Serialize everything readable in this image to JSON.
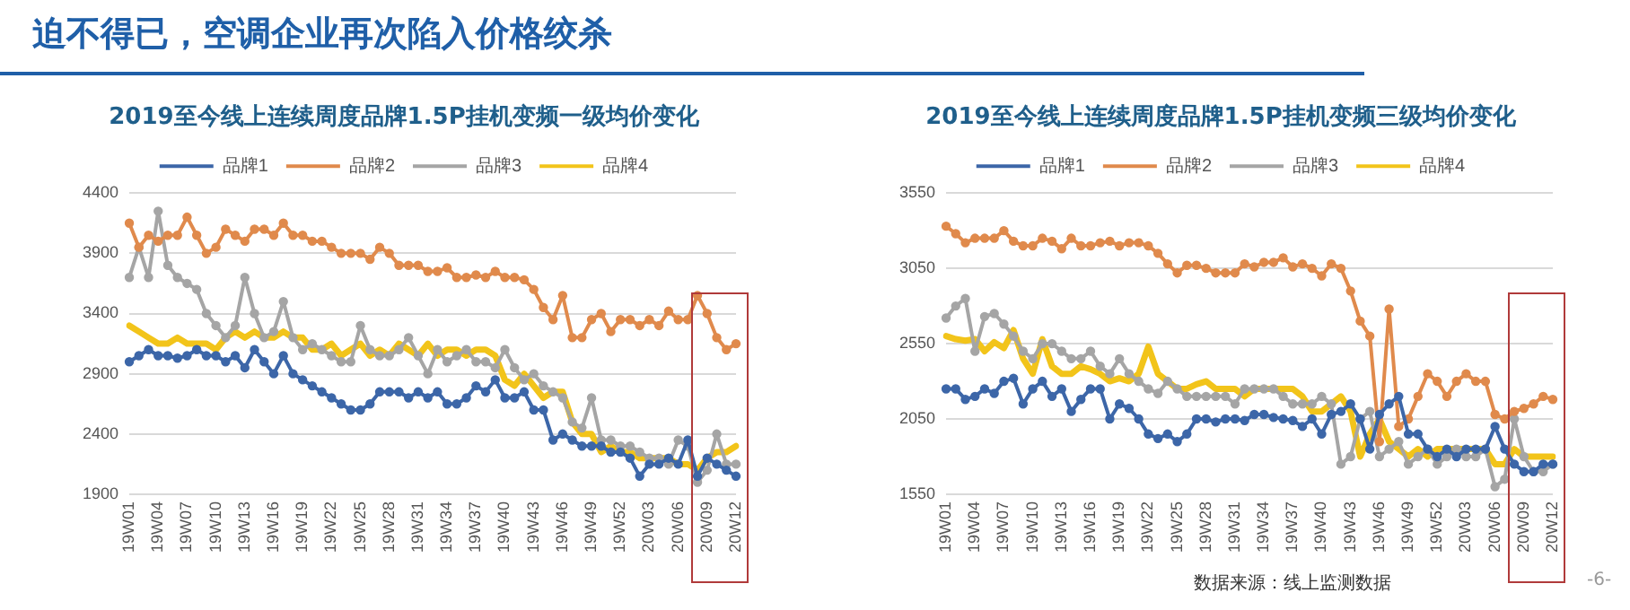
{
  "chart_data": [
    {
      "type": "line",
      "title": "2019至今线上连续周度品牌1.5P挂机变频一级均价变化",
      "annotations": [
        "迫不得已，空调企业再次陷入价格绞杀"
      ],
      "categories": [
        "19W01",
        null,
        null,
        "19W04",
        null,
        null,
        "19W07",
        null,
        null,
        "19W10",
        null,
        null,
        "19W13",
        null,
        null,
        "19W16",
        null,
        null,
        "19W19",
        null,
        null,
        "19W22",
        null,
        null,
        "19W25",
        null,
        null,
        "19W28",
        null,
        null,
        "19W31",
        null,
        null,
        "19W34",
        null,
        null,
        "19W37",
        null,
        null,
        "19W40",
        null,
        null,
        "19W43",
        null,
        null,
        "19W46",
        null,
        null,
        "19W49",
        null,
        null,
        "19W52",
        null,
        null,
        "20W03",
        null,
        null,
        "20W06",
        null,
        null,
        "20W09",
        null,
        null,
        "20W12"
      ],
      "series": [
        {
          "name": "品牌1",
          "color": "#3c66a8",
          "marker": "circle",
          "values": [
            3000,
            3050,
            3100,
            3050,
            3050,
            3030,
            3050,
            3100,
            3050,
            3050,
            3000,
            3050,
            2950,
            3100,
            3000,
            2900,
            3050,
            2900,
            2850,
            2800,
            2750,
            2700,
            2650,
            2600,
            2600,
            2650,
            2750,
            2750,
            2750,
            2700,
            2750,
            2700,
            2750,
            2650,
            2650,
            2700,
            2800,
            2750,
            2850,
            2700,
            2700,
            2750,
            2600,
            2600,
            2350,
            2400,
            2350,
            2300,
            2300,
            2300,
            2250,
            2250,
            2200,
            2050,
            2150,
            2150,
            2200,
            2150,
            2350,
            2050,
            2200,
            2150,
            2100,
            2050
          ]
        },
        {
          "name": "品牌2",
          "color": "#e08a4c",
          "marker": "circle",
          "values": [
            4150,
            3950,
            4050,
            4000,
            4050,
            4050,
            4200,
            4050,
            3900,
            3950,
            4100,
            4050,
            4000,
            4100,
            4100,
            4050,
            4150,
            4050,
            4050,
            4000,
            4000,
            3950,
            3900,
            3900,
            3900,
            3850,
            3950,
            3900,
            3800,
            3800,
            3800,
            3750,
            3750,
            3780,
            3700,
            3700,
            3720,
            3700,
            3750,
            3700,
            3700,
            3680,
            3600,
            3450,
            3350,
            3550,
            3200,
            3200,
            3350,
            3400,
            3250,
            3350,
            3350,
            3300,
            3350,
            3300,
            3420,
            3350,
            3350,
            3550,
            3400,
            3200,
            3100,
            3150
          ]
        },
        {
          "name": "品牌3",
          "color": "#a5a5a5",
          "marker": "circle",
          "values": [
            3700,
            3950,
            3700,
            4250,
            3800,
            3700,
            3650,
            3600,
            3400,
            3300,
            3200,
            3300,
            3700,
            3400,
            3200,
            3250,
            3500,
            3200,
            3100,
            3150,
            3100,
            3050,
            3000,
            3000,
            3300,
            3100,
            3050,
            3050,
            3100,
            3200,
            3050,
            2900,
            3100,
            3000,
            3050,
            3100,
            3000,
            3000,
            2950,
            3100,
            2950,
            2850,
            2900,
            2800,
            2750,
            2700,
            2500,
            2450,
            2700,
            2350,
            2350,
            2300,
            2300,
            2250,
            2200,
            2200,
            2150,
            2350,
            2300,
            2000,
            2100,
            2400,
            2150,
            2150
          ]
        },
        {
          "name": "品牌4",
          "color": "#f2c41a",
          "marker": "none",
          "values": [
            3300,
            3250,
            3200,
            3150,
            3150,
            3200,
            3150,
            3150,
            3150,
            3100,
            3200,
            3250,
            3200,
            3250,
            3200,
            3200,
            3250,
            3200,
            3200,
            3100,
            3100,
            3150,
            3050,
            3100,
            3150,
            3050,
            3100,
            3050,
            3150,
            3100,
            3050,
            3150,
            3050,
            3100,
            3100,
            3050,
            3100,
            3100,
            3050,
            2850,
            2800,
            2900,
            2800,
            2700,
            2750,
            2750,
            2500,
            2400,
            2400,
            2250,
            2300,
            2250,
            2250,
            2200,
            2200,
            2200,
            2200,
            2150,
            2150,
            2100,
            2200,
            2250,
            2250,
            2300
          ]
        }
      ],
      "ylim": [
        1900,
        4400
      ],
      "yticks": [
        1900,
        2400,
        2900,
        3400,
        3900,
        4400
      ],
      "grid": "y",
      "legend": "top"
    },
    {
      "type": "line",
      "title": "2019至今线上连续周度品牌1.5P挂机变频三级均价变化",
      "annotations": [
        "数据来源：线上监测数据",
        "-6-"
      ],
      "categories": [
        "19W01",
        null,
        null,
        "19W04",
        null,
        null,
        "19W07",
        null,
        null,
        "19W10",
        null,
        null,
        "19W13",
        null,
        null,
        "19W16",
        null,
        null,
        "19W19",
        null,
        null,
        "19W22",
        null,
        null,
        "19W25",
        null,
        null,
        "19W28",
        null,
        null,
        "19W31",
        null,
        null,
        "19W34",
        null,
        null,
        "19W37",
        null,
        null,
        "19W40",
        null,
        null,
        "19W43",
        null,
        null,
        "19W46",
        null,
        null,
        "19W49",
        null,
        null,
        "19W52",
        null,
        null,
        "20W03",
        null,
        null,
        "20W06",
        null,
        null,
        "20W09",
        null,
        null,
        "20W12"
      ],
      "series": [
        {
          "name": "品牌1",
          "color": "#3c66a8",
          "marker": "circle",
          "values": [
            2250,
            2250,
            2180,
            2200,
            2250,
            2220,
            2300,
            2320,
            2150,
            2250,
            2300,
            2200,
            2250,
            2100,
            2180,
            2250,
            2250,
            2050,
            2150,
            2120,
            2050,
            1950,
            1920,
            1950,
            1900,
            1950,
            2050,
            2050,
            2030,
            2050,
            2050,
            2040,
            2080,
            2080,
            2060,
            2050,
            2040,
            2000,
            2050,
            1950,
            2080,
            2100,
            2150,
            2050,
            1850,
            2080,
            2150,
            2200,
            1950,
            1950,
            1850,
            1800,
            1850,
            1800,
            1850,
            1850,
            1850,
            2000,
            1850,
            1750,
            1700,
            1700,
            1750,
            1750
          ]
        },
        {
          "name": "品牌2",
          "color": "#e08a4c",
          "marker": "circle",
          "values": [
            3330,
            3280,
            3220,
            3250,
            3250,
            3250,
            3300,
            3230,
            3200,
            3200,
            3250,
            3230,
            3180,
            3250,
            3200,
            3200,
            3220,
            3230,
            3200,
            3220,
            3220,
            3200,
            3150,
            3080,
            3020,
            3070,
            3070,
            3050,
            3020,
            3020,
            3020,
            3080,
            3060,
            3090,
            3090,
            3120,
            3060,
            3080,
            3050,
            3000,
            3080,
            3050,
            2900,
            2700,
            2600,
            1900,
            2780,
            2000,
            2050,
            2200,
            2350,
            2300,
            2200,
            2300,
            2350,
            2300,
            2300,
            2080,
            2050,
            2100,
            2120,
            2150,
            2200,
            2180
          ]
        },
        {
          "name": "品牌3",
          "color": "#a5a5a5",
          "marker": "circle",
          "values": [
            2720,
            2800,
            2850,
            2500,
            2730,
            2750,
            2680,
            2600,
            2500,
            2450,
            2550,
            2550,
            2500,
            2450,
            2450,
            2500,
            2400,
            2350,
            2450,
            2350,
            2300,
            2250,
            2220,
            2300,
            2250,
            2200,
            2200,
            2200,
            2200,
            2200,
            2150,
            2250,
            2250,
            2250,
            2250,
            2200,
            2150,
            2150,
            2150,
            2200,
            2150,
            1750,
            1800,
            2050,
            2100,
            1800,
            1850,
            1900,
            1750,
            1800,
            1850,
            1750,
            1800,
            1850,
            1800,
            1800,
            1850,
            1600,
            1650,
            2050,
            1800,
            1700,
            1700,
            1750
          ]
        },
        {
          "name": "品牌4",
          "color": "#f2c41a",
          "marker": "none",
          "values": [
            2600,
            2580,
            2570,
            2580,
            2500,
            2560,
            2520,
            2640,
            2450,
            2350,
            2580,
            2400,
            2350,
            2350,
            2400,
            2380,
            2350,
            2300,
            2320,
            2300,
            2350,
            2530,
            2350,
            2300,
            2250,
            2250,
            2280,
            2300,
            2250,
            2250,
            2250,
            2200,
            2250,
            2250,
            2250,
            2250,
            2250,
            2200,
            2100,
            2100,
            2150,
            2200,
            2100,
            1800,
            1950,
            2050,
            1900,
            1850,
            1800,
            1850,
            1800,
            1850,
            1850,
            1850,
            1850,
            1850,
            1850,
            1750,
            1750,
            1850,
            1800,
            1800,
            1800,
            1800
          ]
        }
      ],
      "ylim": [
        1550,
        3550
      ],
      "yticks": [
        1550,
        2050,
        2550,
        3050,
        3550
      ],
      "grid": "y",
      "legend": "top"
    }
  ]
}
